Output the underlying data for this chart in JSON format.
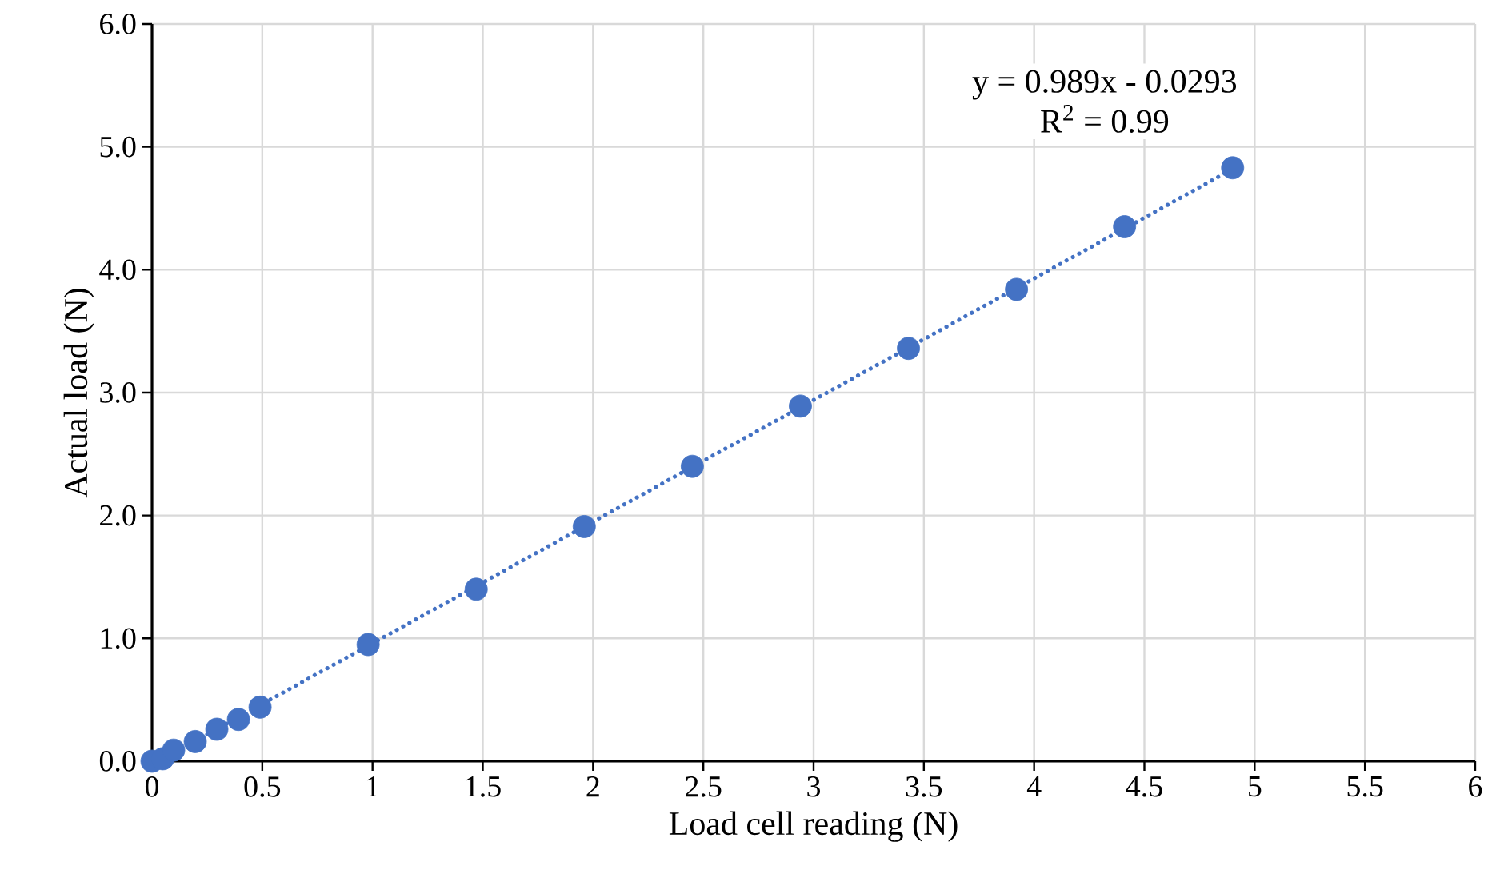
{
  "chart_data": {
    "type": "scatter",
    "xlabel": "Load cell reading (N)",
    "ylabel": "Actual load (N)",
    "xlim": [
      0,
      6
    ],
    "ylim": [
      0,
      6
    ],
    "xticks": [
      0,
      0.5,
      1,
      1.5,
      2,
      2.5,
      3,
      3.5,
      4,
      4.5,
      5,
      5.5,
      6
    ],
    "yticks": [
      {
        "value": 0,
        "label": "0.0"
      },
      {
        "value": 1,
        "label": "1.0"
      },
      {
        "value": 2,
        "label": "2.0"
      },
      {
        "value": 3,
        "label": "3.0"
      },
      {
        "value": 4,
        "label": "4.0"
      },
      {
        "value": 5,
        "label": "5.0"
      },
      {
        "value": 6,
        "label": "6.0"
      }
    ],
    "grid": true,
    "annotations": [
      "y = 0.989x - 0.0293",
      "R$^{2}$ = 0.99"
    ],
    "series": [
      {
        "color": "#4472c4",
        "marker": "circle",
        "x": [
          0,
          0.049,
          0.098,
          0.196,
          0.294,
          0.392,
          0.49,
          0.98,
          1.47,
          1.96,
          2.45,
          2.94,
          3.43,
          3.92,
          4.41,
          4.9
        ],
        "values": [
          0,
          0.02,
          0.09,
          0.16,
          0.26,
          0.34,
          0.44,
          0.95,
          1.4,
          1.91,
          2.4,
          2.89,
          3.36,
          3.84,
          4.35,
          4.83
        ]
      },
      {
        "type": "line",
        "color": "#4472c4",
        "line_style": "dotted",
        "x": [
          0.05,
          4.9
        ],
        "values": [
          0.02,
          4.82
        ]
      }
    ]
  }
}
